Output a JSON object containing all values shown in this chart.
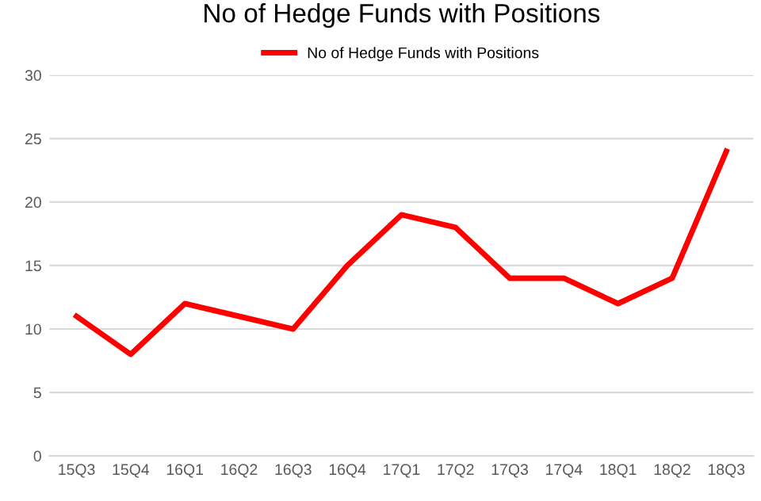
{
  "chart_data": {
    "type": "line",
    "title": "No of Hedge Funds with Positions",
    "categories": [
      "15Q3",
      "15Q4",
      "16Q1",
      "16Q2",
      "16Q3",
      "16Q4",
      "17Q1",
      "17Q2",
      "17Q3",
      "17Q4",
      "18Q1",
      "18Q2",
      "18Q3"
    ],
    "series": [
      {
        "name": "No of Hedge Funds with Positions",
        "color": "#ff0000",
        "values": [
          11,
          8,
          12,
          11,
          10,
          15,
          19,
          18,
          14,
          14,
          12,
          14,
          24
        ]
      }
    ],
    "ylim": [
      0,
      30
    ],
    "yticks": [
      0,
      5,
      10,
      15,
      20,
      25,
      30
    ],
    "grid": "y",
    "legend": "top",
    "marker": "none",
    "line_style": "solid"
  }
}
